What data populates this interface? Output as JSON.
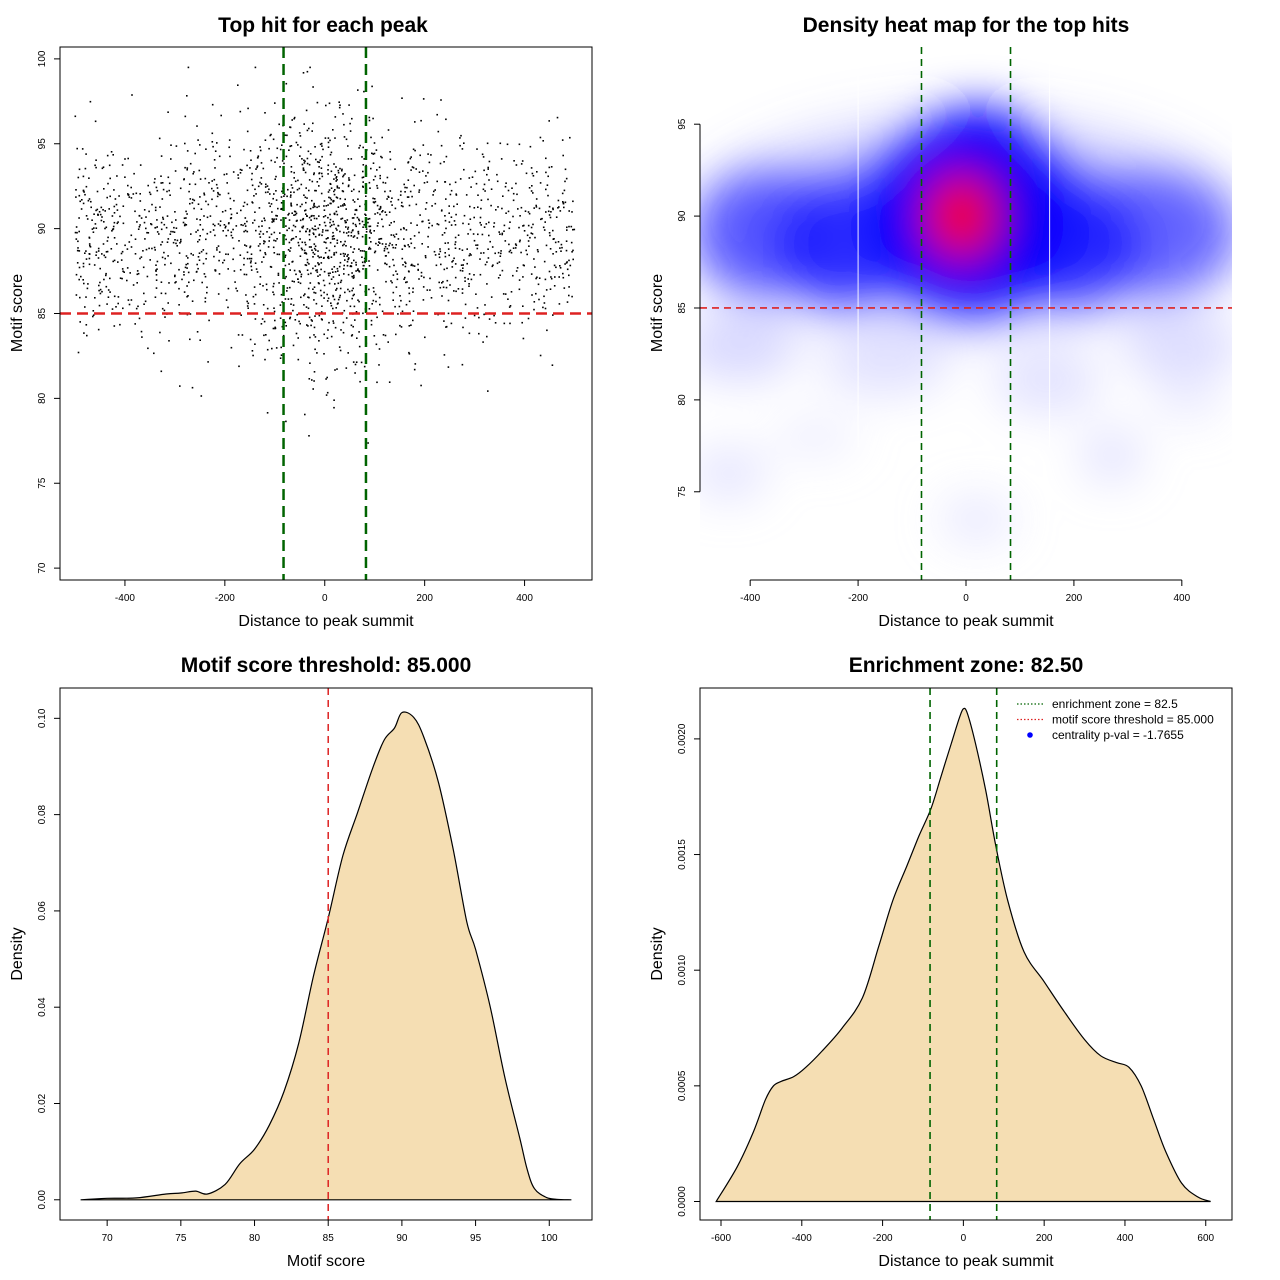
{
  "colors": {
    "points": "#000000",
    "enrichment_line": "#006400",
    "threshold_line": "#dd2222",
    "density_fill": "#f5deb3",
    "density_stroke": "#000000",
    "heat_low": "#ffffff",
    "heat_mid": "#0000ff",
    "heat_high": "#ff0000",
    "legend_marker": "#0000ff"
  },
  "chart_data": [
    {
      "type": "scatter",
      "title": "Top hit for each peak",
      "xlabel": "Distance to peak summit",
      "ylabel": "Motif score",
      "xlim": [
        -530,
        535
      ],
      "ylim": [
        69.3,
        100.7
      ],
      "xticks": [
        -400,
        -200,
        0,
        200,
        400
      ],
      "yticks": [
        70,
        75,
        80,
        85,
        90,
        95,
        100
      ],
      "vlines": [
        -82.5,
        82.5
      ],
      "hline": 85,
      "point_generation": {
        "count": 2200,
        "x_range": [
          -500,
          500
        ],
        "center_fraction": 0.3,
        "center_sd": 90,
        "score_mean": 89.5,
        "score_sd": 3.8,
        "score_range": [
          70,
          99.5
        ]
      },
      "grid": false
    },
    {
      "type": "heatmap",
      "title": "Density heat map for the top hits",
      "xlabel": "Distance to peak summit",
      "ylabel": "Motif score",
      "xlim": [
        -493,
        493
      ],
      "ylim": [
        70.2,
        99.2
      ],
      "xticks": [
        -400,
        -200,
        0,
        200,
        400
      ],
      "yticks": [
        75,
        80,
        85,
        90,
        95
      ],
      "vlines": [
        -82.5,
        82.5
      ],
      "hline": 85,
      "white_lines": [
        -200,
        155
      ],
      "grid": false
    },
    {
      "type": "area",
      "title": "Motif score threshold: 85.000",
      "xlabel": "Motif score",
      "ylabel": "Density",
      "xlim": [
        66.8,
        102.9
      ],
      "ylim": [
        -0.0042,
        0.1063
      ],
      "xticks": [
        70,
        75,
        80,
        85,
        90,
        95,
        100
      ],
      "yticks": [
        0.0,
        0.02,
        0.04,
        0.06,
        0.08,
        0.1
      ],
      "ytick_labels": [
        "0.00",
        "0.02",
        "0.04",
        "0.06",
        "0.08",
        "0.10"
      ],
      "vline": 85,
      "x": [
        68.2,
        70,
        72,
        74,
        75,
        76,
        76.8,
        78,
        79,
        80,
        81,
        82,
        83,
        84,
        85,
        86,
        87,
        88,
        88.8,
        89.5,
        90,
        90.8,
        91.5,
        92.5,
        93.5,
        94.4,
        95,
        96,
        97,
        98,
        98.5,
        99,
        99.8,
        100.5,
        101.5
      ],
      "y": [
        0.0,
        0.0003,
        0.0004,
        0.0012,
        0.0014,
        0.0018,
        0.0012,
        0.0032,
        0.0075,
        0.0105,
        0.0155,
        0.0225,
        0.0325,
        0.0465,
        0.0585,
        0.0715,
        0.0805,
        0.0895,
        0.0955,
        0.098,
        0.1012,
        0.1002,
        0.096,
        0.0865,
        0.0725,
        0.0578,
        0.052,
        0.04,
        0.0252,
        0.0128,
        0.0063,
        0.0023,
        0.0005,
        0.0001,
        0.0
      ],
      "grid": false
    },
    {
      "type": "area",
      "title": "Enrichment zone: 82.50",
      "xlabel": "Distance to peak summit",
      "ylabel": "Density",
      "xlim": [
        -652,
        665
      ],
      "ylim": [
        -8e-05,
        0.00222
      ],
      "xticks": [
        -600,
        -400,
        -200,
        0,
        200,
        400,
        600
      ],
      "yticks": [
        0.0,
        0.0005,
        0.001,
        0.0015,
        0.002
      ],
      "ytick_labels": [
        "0.0000",
        "0.0005",
        "0.0010",
        "0.0015",
        "0.0020"
      ],
      "vlines": [
        -82.5,
        82.5
      ],
      "x": [
        -612,
        -560,
        -520,
        -490,
        -470,
        -450,
        -420,
        -390,
        -350,
        -300,
        -250,
        -210,
        -175,
        -140,
        -110,
        -80,
        -55,
        -30,
        -10,
        0,
        10,
        30,
        55,
        80,
        110,
        150,
        200,
        250,
        300,
        340,
        380,
        410,
        440,
        470,
        500,
        540,
        580,
        612
      ],
      "y": [
        0.0,
        0.00015,
        0.0003,
        0.00044,
        0.0005,
        0.00052,
        0.00054,
        0.00058,
        0.00065,
        0.00075,
        0.00088,
        0.0011,
        0.0013,
        0.00145,
        0.00158,
        0.0017,
        0.00184,
        0.00198,
        0.00209,
        0.00213,
        0.00211,
        0.00198,
        0.00178,
        0.00154,
        0.0013,
        0.00108,
        0.00095,
        0.00082,
        0.0007,
        0.00063,
        0.0006,
        0.00058,
        0.0005,
        0.00036,
        0.00022,
        8e-05,
        2e-05,
        0.0
      ],
      "legend": [
        {
          "label": "enrichment zone = 82.5",
          "marker": "dotted-green"
        },
        {
          "label": "motif score threshold = 85.000",
          "marker": "dotted-red"
        },
        {
          "label": "centrality p-val = -1.7655",
          "marker": "blue-dot"
        }
      ],
      "legend_position": "top-right",
      "grid": false
    }
  ]
}
